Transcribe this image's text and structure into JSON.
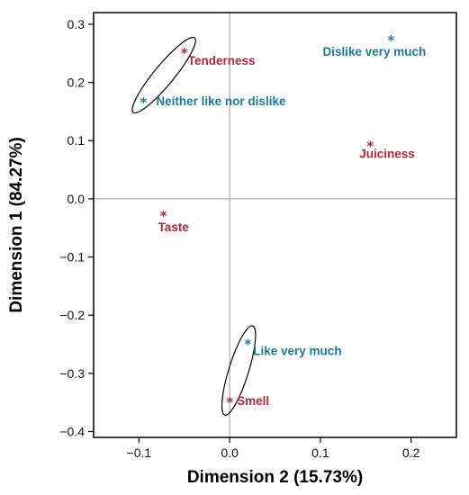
{
  "chart_data": {
    "type": "scatter",
    "title": "",
    "xlabel": "Dimension 2 (15.73%)",
    "ylabel": "Dimension 1 (84.27%)",
    "xlim": [
      -0.15,
      0.25
    ],
    "ylim": [
      -0.41,
      0.32
    ],
    "x_ticks": [
      -0.1,
      0.0,
      0.1,
      0.2
    ],
    "x_tick_labels": [
      "−0.1",
      "0.0",
      "0.1",
      "0.2"
    ],
    "y_ticks": [
      0.3,
      0.2,
      0.1,
      0.0,
      -0.1,
      -0.2,
      -0.3,
      -0.4
    ],
    "y_tick_labels": [
      "0.3",
      "0.2",
      "0.1",
      "0.0",
      "−0.1",
      "−0.2",
      "−0.3",
      "−0.4"
    ],
    "grid": false,
    "reference_lines": {
      "x": 0,
      "y": 0
    },
    "colors": {
      "attribute": "#b5263a",
      "response": "#1a7a9a",
      "axes": "#000000",
      "reference": "#999999"
    },
    "series": [
      {
        "group": "attribute",
        "marker": "*",
        "points": [
          {
            "label": "Tenderness",
            "x": -0.05,
            "y": 0.255
          },
          {
            "label": "Juiciness",
            "x": 0.155,
            "y": 0.095
          },
          {
            "label": "Taste",
            "x": -0.073,
            "y": -0.025
          },
          {
            "label": "Smell",
            "x": 0.0,
            "y": -0.345
          }
        ]
      },
      {
        "group": "response",
        "marker": "*",
        "points": [
          {
            "label": "Dislike very much",
            "x": 0.178,
            "y": 0.277
          },
          {
            "label": "Neither like nor dislike",
            "x": -0.095,
            "y": 0.17
          },
          {
            "label": "Like very much",
            "x": 0.02,
            "y": -0.245
          }
        ]
      }
    ],
    "ellipses": [
      {
        "links": [
          "Tenderness",
          "Neither like nor dislike"
        ]
      },
      {
        "links": [
          "Like very much",
          "Smell"
        ]
      }
    ]
  }
}
